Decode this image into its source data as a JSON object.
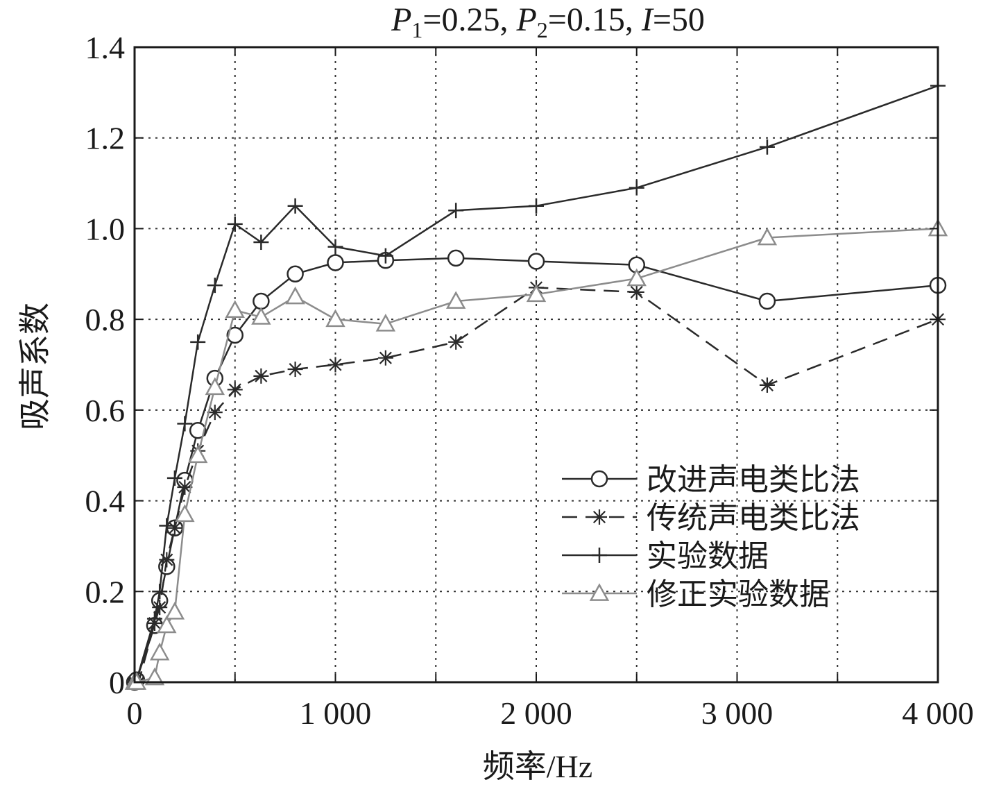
{
  "chart_data": {
    "type": "line",
    "title_parts": {
      "p1_symbol": "P",
      "p1_sub": "1",
      "p1_value": "=0.25, ",
      "p2_symbol": "P",
      "p2_sub": "2",
      "p2_value": "=0.15, ",
      "i_symbol": "I",
      "i_value": "=50"
    },
    "xlabel": "频率/Hz",
    "ylabel": "吸声系数",
    "xlim": [
      0,
      4000
    ],
    "ylim": [
      0,
      1.4
    ],
    "x_ticks": [
      0,
      1000,
      2000,
      3000,
      4000
    ],
    "x_tick_labels": [
      "0",
      "1 000",
      "2 000",
      "3 000",
      "4 000"
    ],
    "x_grid": [
      500,
      1000,
      1500,
      2000,
      2500,
      3000,
      3500
    ],
    "y_ticks": [
      0,
      0.2,
      0.4,
      0.6,
      0.8,
      1.0,
      1.2,
      1.4
    ],
    "y_tick_labels": [
      "0",
      "0.2",
      "0.4",
      "0.6",
      "0.8",
      "1.0",
      "1.2",
      "1.4"
    ],
    "grid": true,
    "legend_position": "lower-right",
    "series": [
      {
        "name": "改进声电类比法",
        "marker": "circle",
        "line": "solid",
        "color": "#2a2a2a",
        "x": [
          0,
          10,
          100,
          125,
          160,
          200,
          250,
          315,
          400,
          500,
          630,
          800,
          1000,
          1250,
          1600,
          2000,
          2500,
          3150,
          4000
        ],
        "y": [
          0,
          0.005,
          0.125,
          0.18,
          0.255,
          0.34,
          0.445,
          0.555,
          0.67,
          0.765,
          0.84,
          0.9,
          0.925,
          0.93,
          0.935,
          0.928,
          0.92,
          0.84,
          0.875
        ]
      },
      {
        "name": "传统声电类比法",
        "marker": "star",
        "line": "dashed",
        "color": "#2a2a2a",
        "x": [
          0,
          20,
          100,
          125,
          160,
          200,
          250,
          315,
          400,
          500,
          630,
          800,
          1000,
          1250,
          1600,
          2000,
          2500,
          3150,
          4000
        ],
        "y": [
          0,
          0.0,
          0.13,
          0.165,
          0.27,
          0.34,
          0.43,
          0.51,
          0.595,
          0.645,
          0.675,
          0.69,
          0.7,
          0.715,
          0.75,
          0.87,
          0.86,
          0.655,
          0.8
        ]
      },
      {
        "name": "实验数据",
        "marker": "plus",
        "line": "solid",
        "color": "#2a2a2a",
        "x": [
          0,
          10,
          100,
          125,
          160,
          200,
          250,
          315,
          400,
          500,
          630,
          800,
          1000,
          1250,
          1600,
          2000,
          2500,
          3150,
          4000
        ],
        "y": [
          0,
          0.005,
          0.14,
          0.2,
          0.345,
          0.45,
          0.57,
          0.75,
          0.875,
          1.01,
          0.97,
          1.05,
          0.96,
          0.94,
          1.04,
          1.05,
          1.09,
          1.18,
          1.315
        ]
      },
      {
        "name": "修正实验数据",
        "marker": "triangle",
        "line": "solid",
        "color": "#8c8c8c",
        "x": [
          0,
          10,
          100,
          125,
          160,
          200,
          250,
          315,
          400,
          500,
          630,
          800,
          1000,
          1250,
          1600,
          2000,
          2500,
          3150,
          4000
        ],
        "y": [
          0,
          0.0,
          0.01,
          0.065,
          0.125,
          0.155,
          0.37,
          0.5,
          0.65,
          0.82,
          0.805,
          0.85,
          0.8,
          0.79,
          0.84,
          0.855,
          0.89,
          0.98,
          1.0
        ]
      }
    ]
  }
}
